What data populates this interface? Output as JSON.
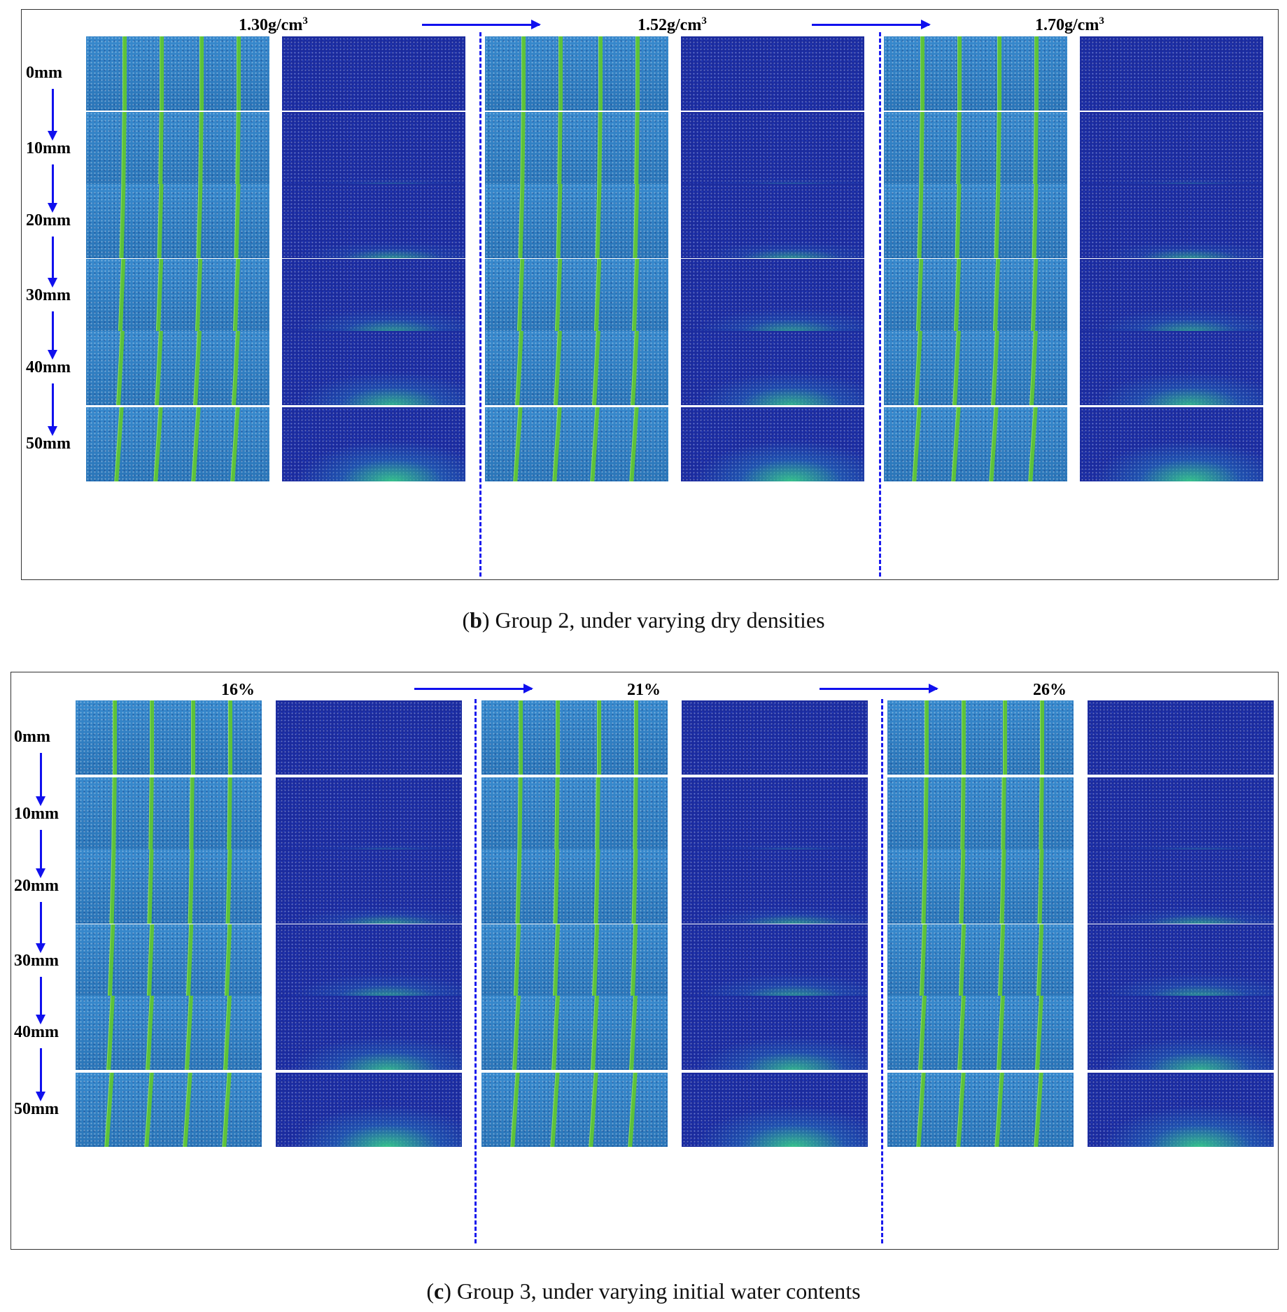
{
  "figure_b": {
    "columns": [
      "1.30g/cm",
      "1.52g/cm",
      "1.70g/cm"
    ],
    "unit_superscript": "3",
    "rows": [
      "0mm",
      "10mm",
      "20mm",
      "30mm",
      "40mm",
      "50mm"
    ],
    "caption": {
      "letter": "b",
      "text": "Group 2, under varying dry densities"
    }
  },
  "figure_c": {
    "columns": [
      "16%",
      "21%",
      "26%"
    ],
    "rows": [
      "0mm",
      "10mm",
      "20mm",
      "30mm",
      "40mm",
      "50mm"
    ],
    "caption": {
      "letter": "c",
      "text": "Group 3, under varying initial water contents"
    }
  },
  "colors": {
    "arrow": "#1010ee",
    "displacement_field": "#2f7fc2",
    "marker_lines": "#5dc23a",
    "force_field": "#1b2b9e",
    "force_high": "#39d08a"
  }
}
